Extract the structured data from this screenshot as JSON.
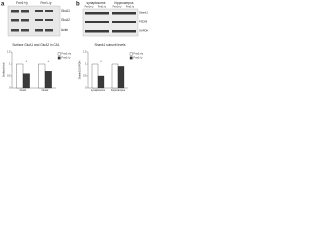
{
  "panel_a": {
    "label": "a",
    "columns": [
      "Fmr1+/y",
      "Fmr1-/y"
    ],
    "bands": [
      "GluA1",
      "GluA2",
      "Actin"
    ]
  },
  "panel_b": {
    "label": "b",
    "groups": [
      "synaptosome",
      "hippocampus"
    ],
    "columns": [
      "Fmr1+/y",
      "Fmr1-/y",
      "Fmr1+/y",
      "Fmr1-/y"
    ],
    "bands": [
      "Shank1",
      "PSD95",
      "GAPDH"
    ]
  },
  "chart_data": [
    {
      "type": "bar",
      "title": "Surface GluA1 and GluA2 in CA1",
      "y_label": "Surface/total",
      "categories": [
        "GluA1",
        "GluA2"
      ],
      "series": [
        {
          "name": "Fmr1+/y",
          "color": "#ffffff",
          "values": [
            1.0,
            1.0
          ]
        },
        {
          "name": "Fmr1-/y",
          "color": "#3a3a3a",
          "values": [
            0.6,
            0.7
          ]
        }
      ],
      "ylim": [
        0,
        1.5
      ],
      "yticks": [
        0,
        0.5,
        1,
        1.5
      ],
      "annotations": [
        "*",
        "*"
      ]
    },
    {
      "type": "bar",
      "title": "Shank1 subunit levels",
      "y_label": "Shank1/GAPDH",
      "categories": [
        "synaptosome",
        "hippocampus"
      ],
      "series": [
        {
          "name": "Fmr1+/y",
          "color": "#ffffff",
          "values": [
            1.0,
            1.0
          ]
        },
        {
          "name": "Fmr1-/y",
          "color": "#3a3a3a",
          "values": [
            0.5,
            0.9
          ]
        }
      ],
      "ylim": [
        0,
        1.5
      ],
      "yticks": [
        0,
        0.5,
        1,
        1.5
      ],
      "annotations": [
        "*"
      ]
    }
  ]
}
